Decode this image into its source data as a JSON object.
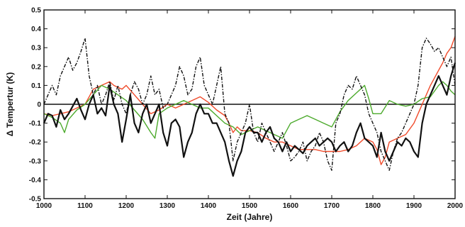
{
  "chart_data": {
    "type": "line",
    "title": "",
    "xlabel": "Zeit (Jahre)",
    "ylabel": "Δ Tempertur (K)",
    "xlim": [
      1000,
      2000
    ],
    "ylim": [
      -0.5,
      0.5
    ],
    "x_ticks": [
      1000,
      1100,
      1200,
      1300,
      1400,
      1500,
      1600,
      1700,
      1800,
      1900,
      2000
    ],
    "y_ticks": [
      -0.5,
      -0.4,
      -0.3,
      -0.2,
      -0.1,
      0,
      0.1,
      0.2,
      0.3,
      0.4,
      0.5
    ],
    "y_tick_labels": [
      "-0.5",
      "-0.4",
      "-0.3",
      "-0.2",
      "-0.1",
      "0",
      "0.1",
      "0.2",
      "0.3",
      "0.4",
      "0.5"
    ],
    "zero_line": true,
    "grid": false,
    "legend": "none",
    "series": [
      {
        "color": "#f04a2a",
        "style": "solid",
        "width": 1.4,
        "x": [
          1000,
          1020,
          1040,
          1060,
          1080,
          1100,
          1110,
          1120,
          1140,
          1160,
          1170,
          1180,
          1190,
          1200,
          1220,
          1240,
          1260,
          1280,
          1300,
          1320,
          1340,
          1360,
          1380,
          1400,
          1420,
          1440,
          1450,
          1460,
          1470,
          1480,
          1500,
          1520,
          1540,
          1560,
          1580,
          1600,
          1620,
          1640,
          1660,
          1680,
          1700,
          1720,
          1740,
          1760,
          1780,
          1800,
          1810,
          1820,
          1830,
          1840,
          1860,
          1880,
          1900,
          1910,
          1920,
          1930,
          1940,
          1950,
          1960,
          1970,
          1980,
          1990,
          2000
        ],
        "y": [
          -0.05,
          -0.06,
          -0.05,
          -0.04,
          -0.02,
          0.0,
          0.04,
          0.08,
          0.1,
          0.12,
          0.1,
          0.09,
          0.08,
          0.1,
          0.05,
          0.0,
          -0.05,
          -0.03,
          0.0,
          -0.02,
          0.0,
          0.02,
          0.04,
          0.01,
          -0.03,
          -0.06,
          -0.1,
          -0.15,
          -0.12,
          -0.14,
          -0.14,
          -0.15,
          -0.18,
          -0.2,
          -0.2,
          -0.22,
          -0.24,
          -0.24,
          -0.24,
          -0.25,
          -0.25,
          -0.25,
          -0.24,
          -0.22,
          -0.18,
          -0.2,
          -0.24,
          -0.32,
          -0.28,
          -0.2,
          -0.18,
          -0.16,
          -0.1,
          -0.05,
          0.0,
          0.05,
          0.1,
          0.14,
          0.18,
          0.22,
          0.27,
          0.3,
          0.36
        ]
      },
      {
        "color": "#4caa2c",
        "style": "solid",
        "width": 1.4,
        "x": [
          1000,
          1020,
          1040,
          1050,
          1060,
          1080,
          1100,
          1120,
          1140,
          1160,
          1180,
          1200,
          1220,
          1240,
          1260,
          1270,
          1280,
          1300,
          1320,
          1340,
          1360,
          1380,
          1400,
          1420,
          1440,
          1460,
          1480,
          1500,
          1520,
          1540,
          1560,
          1580,
          1600,
          1620,
          1640,
          1660,
          1680,
          1700,
          1720,
          1740,
          1760,
          1780,
          1790,
          1800,
          1820,
          1840,
          1860,
          1880,
          1900,
          1920,
          1940,
          1960,
          1970,
          1980,
          1990,
          2000
        ],
        "y": [
          -0.05,
          -0.07,
          -0.1,
          -0.15,
          -0.08,
          -0.03,
          0.0,
          0.05,
          0.1,
          0.08,
          0.05,
          0.02,
          -0.03,
          -0.08,
          -0.15,
          -0.18,
          -0.05,
          -0.02,
          0.0,
          0.02,
          0.0,
          -0.02,
          -0.02,
          -0.06,
          -0.1,
          -0.12,
          -0.16,
          -0.14,
          -0.12,
          -0.14,
          -0.16,
          -0.18,
          -0.1,
          -0.08,
          -0.06,
          -0.08,
          -0.1,
          -0.12,
          -0.04,
          0.02,
          0.06,
          0.1,
          0.03,
          -0.05,
          -0.05,
          0.02,
          0.0,
          -0.01,
          0.0,
          0.03,
          0.04,
          0.1,
          0.12,
          0.1,
          0.07,
          0.05
        ]
      },
      {
        "color": "#111111",
        "style": "solid",
        "width": 2.2,
        "x": [
          1000,
          1010,
          1020,
          1030,
          1040,
          1050,
          1060,
          1070,
          1080,
          1090,
          1100,
          1110,
          1120,
          1130,
          1140,
          1150,
          1160,
          1170,
          1180,
          1190,
          1200,
          1210,
          1220,
          1230,
          1240,
          1250,
          1260,
          1270,
          1280,
          1290,
          1300,
          1310,
          1320,
          1330,
          1340,
          1350,
          1360,
          1370,
          1380,
          1390,
          1400,
          1410,
          1420,
          1430,
          1440,
          1450,
          1460,
          1470,
          1480,
          1490,
          1500,
          1510,
          1520,
          1530,
          1540,
          1550,
          1560,
          1570,
          1580,
          1590,
          1600,
          1610,
          1620,
          1630,
          1640,
          1650,
          1660,
          1670,
          1680,
          1690,
          1700,
          1710,
          1720,
          1730,
          1740,
          1750,
          1760,
          1770,
          1780,
          1790,
          1800,
          1810,
          1820,
          1830,
          1840,
          1850,
          1860,
          1870,
          1880,
          1890,
          1900,
          1910,
          1920,
          1930,
          1940,
          1950,
          1960,
          1970,
          1980,
          1990,
          2000
        ],
        "y": [
          -0.1,
          -0.05,
          -0.06,
          -0.12,
          -0.03,
          -0.08,
          -0.05,
          -0.01,
          0.03,
          -0.03,
          -0.08,
          0.0,
          0.05,
          -0.05,
          -0.02,
          -0.06,
          0.1,
          0.0,
          -0.05,
          -0.2,
          -0.08,
          0.05,
          -0.1,
          -0.15,
          -0.05,
          0.0,
          -0.1,
          -0.05,
          0.0,
          -0.15,
          -0.22,
          -0.1,
          -0.08,
          -0.12,
          -0.28,
          -0.2,
          -0.15,
          -0.05,
          0.0,
          -0.05,
          -0.05,
          -0.1,
          -0.1,
          -0.15,
          -0.2,
          -0.3,
          -0.38,
          -0.3,
          -0.25,
          -0.15,
          -0.12,
          -0.15,
          -0.15,
          -0.2,
          -0.15,
          -0.12,
          -0.18,
          -0.2,
          -0.25,
          -0.2,
          -0.25,
          -0.22,
          -0.24,
          -0.26,
          -0.22,
          -0.2,
          -0.18,
          -0.22,
          -0.2,
          -0.18,
          -0.2,
          -0.25,
          -0.22,
          -0.2,
          -0.25,
          -0.22,
          -0.15,
          -0.1,
          -0.18,
          -0.2,
          -0.22,
          -0.28,
          -0.15,
          -0.25,
          -0.3,
          -0.25,
          -0.2,
          -0.22,
          -0.18,
          -0.2,
          -0.25,
          -0.28,
          -0.1,
          0.0,
          0.05,
          0.1,
          0.15,
          0.1,
          0.05,
          0.15,
          0.22
        ]
      },
      {
        "color": "#111111",
        "style": "dashdot",
        "width": 1.4,
        "x": [
          1000,
          1010,
          1020,
          1030,
          1040,
          1050,
          1060,
          1070,
          1080,
          1090,
          1100,
          1110,
          1120,
          1130,
          1140,
          1150,
          1160,
          1170,
          1180,
          1190,
          1200,
          1210,
          1220,
          1230,
          1240,
          1250,
          1260,
          1270,
          1280,
          1290,
          1300,
          1310,
          1320,
          1330,
          1340,
          1350,
          1360,
          1370,
          1380,
          1390,
          1400,
          1410,
          1420,
          1430,
          1440,
          1450,
          1460,
          1470,
          1480,
          1490,
          1500,
          1510,
          1520,
          1530,
          1540,
          1550,
          1560,
          1570,
          1580,
          1590,
          1600,
          1610,
          1620,
          1630,
          1640,
          1650,
          1660,
          1670,
          1680,
          1690,
          1700,
          1710,
          1720,
          1730,
          1740,
          1750,
          1760,
          1770,
          1780,
          1790,
          1800,
          1810,
          1820,
          1830,
          1840,
          1850,
          1860,
          1870,
          1880,
          1890,
          1900,
          1910,
          1920,
          1930,
          1940,
          1950,
          1960,
          1970,
          1980,
          1990,
          2000
        ],
        "y": [
          0.0,
          0.05,
          0.1,
          0.05,
          0.15,
          0.2,
          0.25,
          0.18,
          0.22,
          0.28,
          0.35,
          0.15,
          0.05,
          0.1,
          0.0,
          0.05,
          0.12,
          0.02,
          0.1,
          0.0,
          -0.05,
          0.05,
          0.12,
          0.08,
          0.0,
          0.05,
          0.15,
          0.05,
          0.08,
          -0.02,
          0.0,
          0.05,
          0.1,
          0.2,
          0.15,
          0.05,
          0.08,
          0.2,
          0.25,
          0.1,
          0.05,
          0.0,
          0.1,
          0.2,
          -0.05,
          -0.1,
          -0.3,
          -0.2,
          -0.15,
          -0.1,
          0.0,
          -0.15,
          -0.2,
          -0.1,
          -0.15,
          -0.2,
          -0.25,
          -0.2,
          -0.15,
          -0.22,
          -0.3,
          -0.28,
          -0.25,
          -0.2,
          -0.3,
          -0.25,
          -0.22,
          -0.15,
          -0.2,
          -0.3,
          -0.35,
          -0.1,
          -0.05,
          0.05,
          0.1,
          0.08,
          0.15,
          0.1,
          0.05,
          -0.05,
          -0.1,
          -0.15,
          -0.25,
          -0.3,
          -0.35,
          -0.25,
          -0.18,
          -0.15,
          -0.1,
          -0.05,
          0.0,
          0.1,
          0.3,
          0.35,
          0.32,
          0.28,
          0.3,
          0.25,
          0.2,
          0.25,
          0.1
        ]
      }
    ]
  }
}
